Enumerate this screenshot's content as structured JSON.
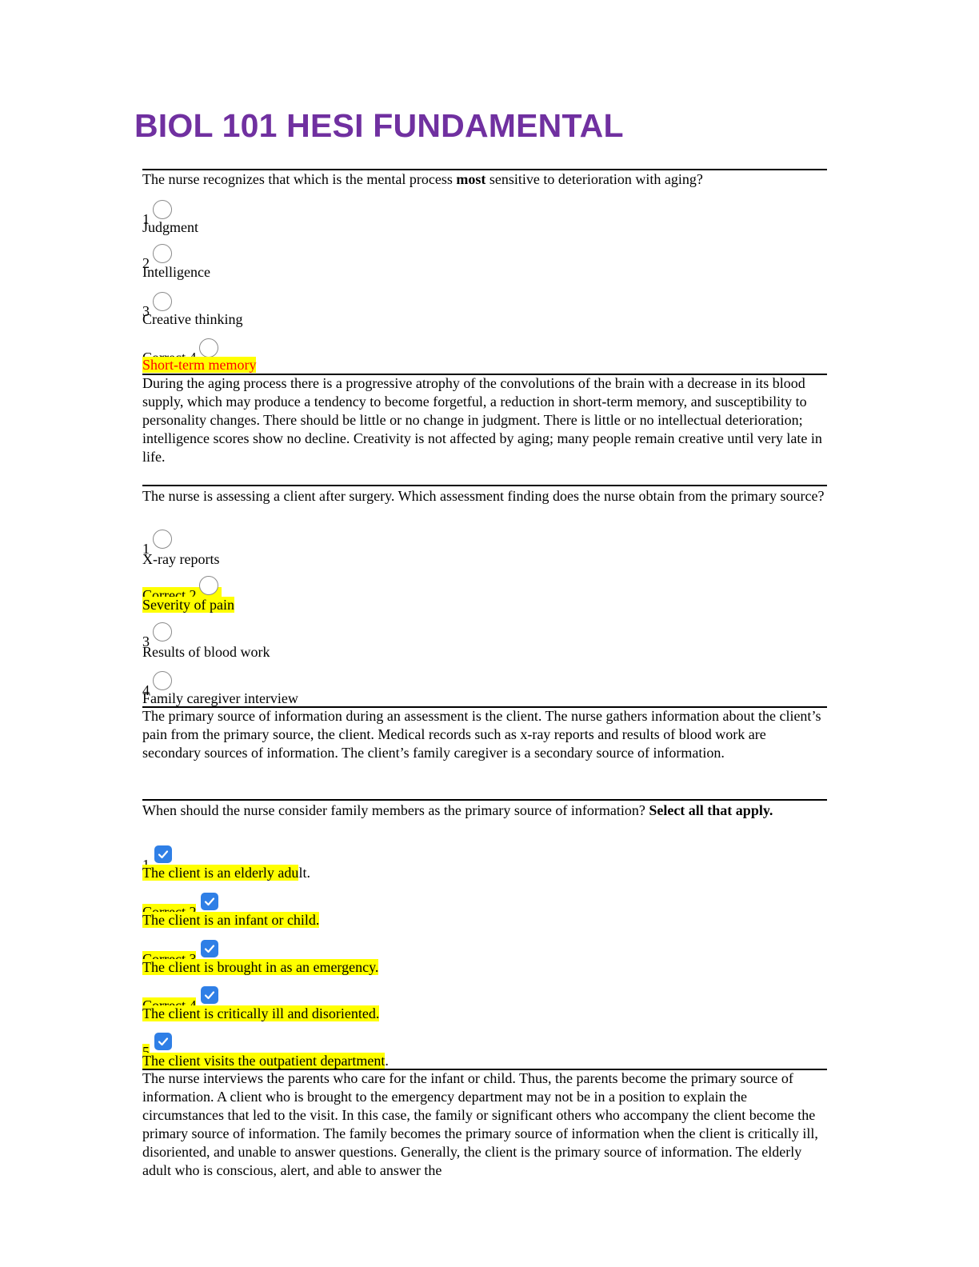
{
  "title": "BIOL 101 HESI FUNDAMENTAL",
  "q1": {
    "question_pre": "The nurse recognizes that which is the mental process ",
    "question_bold": "most",
    "question_post": " sensitive to deterioration with aging?",
    "options": [
      {
        "num": "1",
        "text": "Judgment"
      },
      {
        "num": "2",
        "text": "Intelligence"
      },
      {
        "num": "3",
        "text": "Creative thinking"
      },
      {
        "num": "Correct 4",
        "text": "Short-term memory"
      }
    ],
    "rationale": "During the aging process there is a progressive atrophy of the convolutions of the brain with a decrease in its blood supply, which may produce a tendency to become forgetful, a reduction in short-term memory, and susceptibility to personality changes. There should be little or no change in judgment. There is little or no intellectual deterioration; intelligence scores show no decline. Creativity is not affected by aging; many people remain creative until very late in life."
  },
  "q2": {
    "question": "The nurse is assessing a client after surgery. Which assessment finding does the nurse obtain from the primary source?",
    "options": [
      {
        "num": "1",
        "text": "X-ray reports"
      },
      {
        "num": "Correct 2",
        "text": "Severity of pain"
      },
      {
        "num": "3",
        "text": "Results of blood work"
      },
      {
        "num": "4",
        "text": "Family caregiver interview"
      }
    ],
    "rationale": "The primary source of information during an assessment is the client. The nurse gathers information about the client’s pain from the primary source, the client. Medical records such as x-ray reports and results of blood work are secondary sources of information. The client’s family caregiver is a secondary source of information."
  },
  "q3": {
    "question_pre": "When should the nurse consider family members as the primary source of information? ",
    "question_bold": "Select all that apply.",
    "options": [
      {
        "num": "1",
        "text_hl": "The client is an elderly adu",
        "text_plain": "lt."
      },
      {
        "num": "Correct 2",
        "text_hl": "The client is an infant or child.",
        "text_plain": ""
      },
      {
        "num": "Correct 3",
        "text_hl": "The client is brought in as an emergency.",
        "text_plain": ""
      },
      {
        "num": "Correct 4",
        "text_hl": "The client is critically ill and disoriented.",
        "text_plain": ""
      },
      {
        "num": "5",
        "text_hl": "The client visits the outpatient department",
        "text_plain": "."
      }
    ],
    "rationale": "The nurse interviews the parents who care for the infant or child. Thus, the parents become the primary source of information. A client who is brought to the emergency department may not be in a position to explain the circumstances that led to the visit. In this case, the family or significant others who accompany the client become the primary source of information. The family becomes the primary source of information when the client is critically ill, disoriented, and unable to answer questions. Generally, the client is the primary source of information. The elderly adult who is conscious, alert, and able to answer the"
  }
}
